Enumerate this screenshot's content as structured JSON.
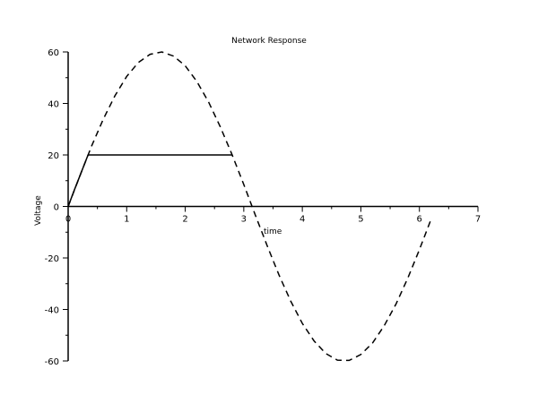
{
  "chart_data": {
    "type": "line",
    "title": "Network Response",
    "xlabel": "time",
    "ylabel": "Voltage",
    "xlim": [
      0,
      7
    ],
    "ylim": [
      -60,
      60
    ],
    "xticks": [
      0,
      1,
      2,
      3,
      4,
      5,
      6,
      7
    ],
    "yticks": [
      -60,
      -40,
      -20,
      0,
      20,
      40,
      60
    ],
    "grid": false,
    "series": [
      {
        "style": "dashed",
        "color": "#000000",
        "x": [
          0,
          0.2,
          0.4,
          0.6,
          0.8,
          1.0,
          1.2,
          1.4,
          1.6,
          1.8,
          2.0,
          2.2,
          2.4,
          2.6,
          2.8,
          3.0,
          3.2,
          3.4,
          3.6,
          3.8,
          4.0,
          4.2,
          4.4,
          4.6,
          4.8,
          5.0,
          5.2,
          5.4,
          5.6,
          5.8,
          6.0,
          6.2
        ],
        "y": [
          0,
          11.9,
          23.4,
          33.9,
          43.0,
          50.5,
          55.9,
          59.1,
          60.0,
          58.4,
          54.6,
          48.5,
          40.5,
          30.9,
          20.1,
          8.5,
          -3.5,
          -15.3,
          -26.5,
          -36.7,
          -45.4,
          -52.2,
          -57.1,
          -59.7,
          -59.8,
          -57.5,
          -53.0,
          -46.3,
          -37.9,
          -27.9,
          -16.8,
          -4.9
        ]
      },
      {
        "style": "solid",
        "color": "#000000",
        "x": [
          0,
          0.1,
          0.2,
          0.3,
          0.34,
          2.8
        ],
        "y": [
          0,
          6.0,
          11.9,
          17.7,
          20,
          20
        ]
      }
    ]
  }
}
